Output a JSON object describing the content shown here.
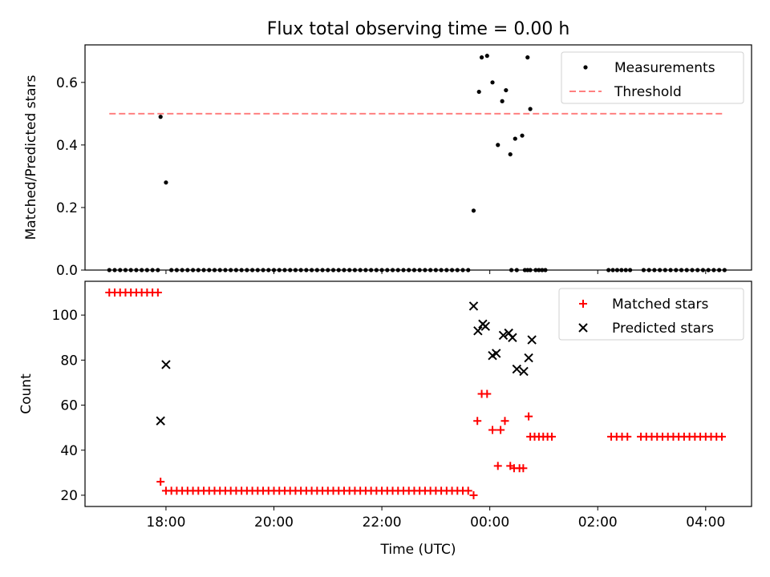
{
  "chart_data": [
    {
      "type": "scatter",
      "title": "Flux total observing time = 0.00 h",
      "xlabel": "",
      "ylabel": "Matched/Predicted stars",
      "xlim": [
        16.5,
        28.85
      ],
      "ylim": [
        0.0,
        0.72
      ],
      "xticks": [
        18,
        20,
        22,
        24,
        26,
        28
      ],
      "yticks": [
        0.0,
        0.2,
        0.4,
        0.6
      ],
      "ytick_labels": [
        "0.0",
        "0.2",
        "0.4",
        "0.6"
      ],
      "legend": {
        "position": "top-right",
        "entries": [
          "Measurements",
          "Threshold"
        ]
      },
      "series": [
        {
          "name": "Measurements",
          "color": "#000000",
          "marker": "dot",
          "points": [
            [
              17.9,
              0.49
            ],
            [
              18.0,
              0.28
            ],
            [
              23.7,
              0.19
            ],
            [
              23.8,
              0.57
            ],
            [
              23.85,
              0.68
            ],
            [
              23.95,
              0.685
            ],
            [
              24.05,
              0.6
            ],
            [
              24.15,
              0.4
            ],
            [
              24.23,
              0.54
            ],
            [
              24.3,
              0.575
            ],
            [
              24.38,
              0.37
            ],
            [
              24.47,
              0.42
            ],
            [
              24.6,
              0.43
            ],
            [
              24.7,
              0.68
            ],
            [
              24.75,
              0.515
            ]
          ],
          "zero_runs": [
            [
              16.95,
              17.88,
              0.1
            ],
            [
              18.1,
              23.65,
              0.1
            ],
            [
              24.4,
              24.5,
              0.1
            ],
            [
              24.65,
              24.75,
              0.05
            ],
            [
              24.85,
              25.05,
              0.06
            ],
            [
              26.2,
              26.6,
              0.08
            ],
            [
              26.85,
              28.35,
              0.1
            ]
          ]
        },
        {
          "name": "Threshold",
          "color": "#ff8080",
          "style": "dashed",
          "x": [
            16.95,
            28.35
          ],
          "y": [
            0.5,
            0.5
          ]
        }
      ]
    },
    {
      "type": "scatter",
      "title": "",
      "xlabel": "Time (UTC)",
      "ylabel": "Count",
      "xlim": [
        16.5,
        28.85
      ],
      "ylim": [
        15,
        115
      ],
      "xticks": [
        18,
        20,
        22,
        24,
        26,
        28
      ],
      "xtick_labels": [
        "18:00",
        "20:00",
        "22:00",
        "00:00",
        "02:00",
        "04:00"
      ],
      "yticks": [
        20,
        40,
        60,
        80,
        100
      ],
      "ytick_labels": [
        "20",
        "40",
        "60",
        "80",
        "100"
      ],
      "legend": {
        "position": "top-right",
        "entries": [
          "Matched stars",
          "Predicted stars"
        ]
      },
      "series": [
        {
          "name": "Matched stars",
          "color": "#ff0000",
          "marker": "plus",
          "points": [
            [
              17.9,
              26
            ],
            [
              23.7,
              20
            ],
            [
              23.77,
              53
            ],
            [
              23.85,
              65
            ],
            [
              23.95,
              65
            ],
            [
              24.05,
              49
            ],
            [
              24.2,
              49
            ],
            [
              24.15,
              33
            ],
            [
              24.28,
              53
            ],
            [
              24.38,
              33
            ],
            [
              24.45,
              32
            ],
            [
              24.55,
              32
            ],
            [
              24.62,
              32
            ],
            [
              24.72,
              55
            ]
          ],
          "runs": [
            [
              16.95,
              17.85,
              0.1,
              110
            ],
            [
              18.0,
              23.65,
              0.1,
              22
            ],
            [
              24.75,
              25.2,
              0.08,
              46
            ],
            [
              26.25,
              26.55,
              0.1,
              46
            ],
            [
              26.8,
              28.35,
              0.1,
              46
            ]
          ]
        },
        {
          "name": "Predicted stars",
          "color": "#000000",
          "marker": "x",
          "points": [
            [
              17.9,
              53
            ],
            [
              18.0,
              78
            ],
            [
              23.7,
              104
            ],
            [
              23.78,
              93
            ],
            [
              23.87,
              96
            ],
            [
              23.92,
              95
            ],
            [
              24.05,
              82
            ],
            [
              24.12,
              83
            ],
            [
              24.25,
              91
            ],
            [
              24.35,
              92
            ],
            [
              24.42,
              90
            ],
            [
              24.5,
              76
            ],
            [
              24.63,
              75
            ],
            [
              24.72,
              81
            ],
            [
              24.78,
              89
            ]
          ]
        }
      ]
    }
  ]
}
